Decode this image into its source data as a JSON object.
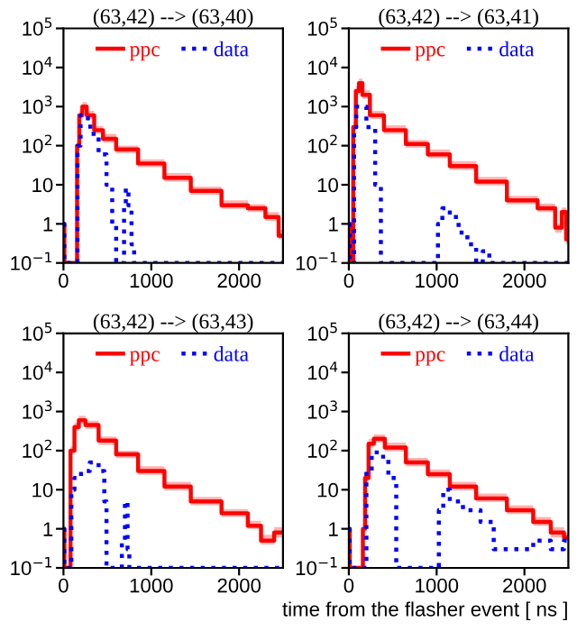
{
  "chart_data": [
    {
      "type": "step",
      "title": "(63,42) --> (63,40)",
      "xlim": [
        0,
        2500
      ],
      "ylim": [
        0.1,
        100000
      ],
      "log": true,
      "xticks": [
        0,
        1000,
        2000
      ],
      "yticks": [
        {
          "value": 0.1,
          "label": "10$^{−1}$"
        },
        1,
        10,
        {
          "value": 100,
          "label": "10$^{2}$"
        },
        {
          "value": 1000,
          "label": "10$^{3}$"
        },
        {
          "value": 10000,
          "label": "10$^{4}$"
        },
        {
          "value": 100000,
          "label": "10$^{5}$"
        }
      ],
      "legend": "top",
      "grid": false,
      "series": [
        {
          "name": "ppc",
          "color": "#ff0000",
          "line_style": "solid",
          "x": [
            0,
            20,
            150,
            160,
            200,
            230,
            300,
            400,
            500,
            700,
            1000,
            1300,
            1600,
            2000,
            2200,
            2400,
            2500
          ],
          "values": [
            1,
            0.1,
            0.1,
            100,
            600,
            1000,
            600,
            250,
            150,
            80,
            35,
            15,
            7,
            3,
            2.5,
            1.5,
            0.5
          ],
          "lower": [
            1,
            0.1,
            0.1,
            80,
            480,
            800,
            480,
            200,
            120,
            64,
            28,
            12,
            5.6,
            2.4,
            2,
            1.2,
            0.4
          ],
          "upper": [
            1,
            0.1,
            0.1,
            130,
            780,
            1300,
            780,
            320,
            200,
            100,
            45,
            20,
            9,
            4,
            3.2,
            2,
            0.7
          ]
        },
        {
          "name": "data",
          "color": "#0000ff",
          "line_style": "dotted",
          "x": [
            0,
            20,
            150,
            170,
            220,
            260,
            350,
            450,
            530,
            580,
            620,
            680,
            700,
            720,
            760,
            790,
            820,
            2500
          ],
          "values": [
            1,
            0.1,
            0.1,
            100,
            600,
            500,
            200,
            60,
            10,
            1,
            0.1,
            0.1,
            3,
            8,
            3,
            0.3,
            0.1,
            0.1
          ]
        }
      ]
    },
    {
      "type": "step",
      "title": "(63,42) --> (63,41)",
      "xlim": [
        0,
        2500
      ],
      "ylim": [
        0.1,
        100000
      ],
      "log": true,
      "xticks": [
        0,
        1000,
        2000
      ],
      "yticks": [
        {
          "value": 0.1,
          "label": "10$^{−1}$"
        },
        1,
        10,
        {
          "value": 100,
          "label": "10$^{2}$"
        },
        {
          "value": 1000,
          "label": "10$^{3}$"
        },
        {
          "value": 10000,
          "label": "10$^{4}$"
        },
        {
          "value": 100000,
          "label": "10$^{5}$"
        }
      ],
      "legend": "top",
      "grid": false,
      "series": [
        {
          "name": "ppc",
          "color": "#ff0000",
          "line_style": "solid",
          "x": [
            0,
            20,
            40,
            60,
            100,
            130,
            180,
            300,
            500,
            800,
            1000,
            1300,
            1600,
            2000,
            2300,
            2400,
            2450,
            2500
          ],
          "values": [
            1,
            0.1,
            0.1,
            300,
            2500,
            4000,
            2000,
            600,
            250,
            110,
            60,
            30,
            12,
            4,
            2.5,
            0.8,
            2,
            0.4
          ],
          "lower": [
            1,
            0.1,
            0.1,
            240,
            2000,
            3200,
            1600,
            480,
            200,
            88,
            48,
            24,
            9.6,
            3.2,
            2,
            0.6,
            1.6,
            0.3
          ],
          "upper": [
            1,
            0.1,
            0.1,
            400,
            3300,
            5200,
            2600,
            780,
            330,
            140,
            80,
            40,
            16,
            5.2,
            3.3,
            1,
            2.6,
            0.5
          ]
        },
        {
          "name": "data",
          "color": "#0000ff",
          "line_style": "dotted",
          "x": [
            0,
            20,
            50,
            70,
            100,
            150,
            250,
            350,
            380,
            1000,
            1030,
            1100,
            1200,
            1300,
            1400,
            1500,
            1550,
            1650,
            2500
          ],
          "values": [
            1,
            0.1,
            0.1,
            300,
            1000,
            1000,
            300,
            10,
            0.1,
            0.1,
            1,
            2.5,
            1.5,
            0.6,
            0.3,
            0.1,
            0.2,
            0.1,
            0.1
          ]
        }
      ]
    },
    {
      "type": "step",
      "title": "(63,42) --> (63,43)",
      "xlim": [
        0,
        2500
      ],
      "ylim": [
        0.1,
        100000
      ],
      "log": true,
      "xticks": [
        0,
        1000,
        2000
      ],
      "yticks": [
        {
          "value": 0.1,
          "label": "10$^{−1}$"
        },
        1,
        10,
        {
          "value": 100,
          "label": "10$^{2}$"
        },
        {
          "value": 1000,
          "label": "10$^{3}$"
        },
        {
          "value": 10000,
          "label": "10$^{4}$"
        },
        {
          "value": 100000,
          "label": "10$^{5}$"
        }
      ],
      "legend": "top",
      "grid": false,
      "series": [
        {
          "name": "ppc",
          "color": "#ff0000",
          "line_style": "solid",
          "x": [
            0,
            20,
            60,
            100,
            150,
            200,
            300,
            500,
            700,
            1000,
            1300,
            1600,
            2000,
            2200,
            2300,
            2500
          ],
          "values": [
            1,
            0.1,
            0.1,
            100,
            400,
            600,
            450,
            180,
            80,
            30,
            12,
            5,
            2.5,
            1.2,
            0.5,
            0.8
          ],
          "lower": [
            1,
            0.1,
            0.1,
            80,
            320,
            480,
            360,
            140,
            64,
            24,
            9.6,
            4,
            2,
            1,
            0.4,
            0.6
          ],
          "upper": [
            1,
            0.1,
            0.1,
            130,
            520,
            780,
            580,
            230,
            100,
            40,
            16,
            6.5,
            3.2,
            1.6,
            0.7,
            1.1
          ]
        },
        {
          "name": "data",
          "color": "#0000ff",
          "line_style": "dotted",
          "x": [
            0,
            20,
            80,
            100,
            150,
            250,
            350,
            450,
            480,
            500,
            650,
            680,
            720,
            740,
            760,
            2500
          ],
          "values": [
            1,
            0.1,
            0.1,
            10,
            20,
            30,
            50,
            30,
            5,
            0.1,
            0.1,
            0.5,
            5,
            0.3,
            0.1,
            0.1
          ]
        }
      ]
    },
    {
      "type": "step",
      "title": "(63,42) --> (63,44)",
      "xlabel": "time from the flasher event [ ns ]",
      "xlim": [
        0,
        2500
      ],
      "ylim": [
        0.1,
        100000
      ],
      "log": true,
      "xticks": [
        0,
        1000,
        2000
      ],
      "yticks": [
        {
          "value": 0.1,
          "label": "10$^{−1}$"
        },
        1,
        10,
        {
          "value": 100,
          "label": "10$^{2}$"
        },
        {
          "value": 1000,
          "label": "10$^{3}$"
        },
        {
          "value": 10000,
          "label": "10$^{4}$"
        },
        {
          "value": 100000,
          "label": "10$^{5}$"
        }
      ],
      "legend": "top",
      "grid": false,
      "series": [
        {
          "name": "ppc",
          "color": "#ff0000",
          "line_style": "solid",
          "x": [
            0,
            20,
            150,
            170,
            200,
            250,
            320,
            500,
            800,
            1000,
            1300,
            1600,
            2000,
            2200,
            2400,
            2500
          ],
          "values": [
            1,
            0.1,
            0.1,
            1,
            20,
            150,
            200,
            120,
            50,
            25,
            12,
            6,
            3,
            1.5,
            0.8,
            0.6
          ],
          "lower": [
            1,
            0.1,
            0.1,
            0.8,
            16,
            120,
            160,
            96,
            40,
            20,
            9.6,
            4.8,
            2.4,
            1.2,
            0.6,
            0.5
          ],
          "upper": [
            1,
            0.1,
            0.1,
            1.3,
            26,
            200,
            260,
            160,
            65,
            33,
            16,
            8,
            4,
            2,
            1.1,
            0.8
          ]
        },
        {
          "name": "data",
          "color": "#0000ff",
          "line_style": "dotted",
          "x": [
            0,
            20,
            180,
            220,
            300,
            400,
            500,
            580,
            1000,
            1050,
            1100,
            1200,
            1400,
            1600,
            1700,
            2000,
            2200,
            2400,
            2500
          ],
          "values": [
            1,
            0.1,
            0.1,
            30,
            90,
            70,
            20,
            0.1,
            0.1,
            3,
            10,
            5,
            3,
            1.5,
            0.3,
            0.3,
            0.5,
            0.3,
            0.5
          ]
        }
      ]
    }
  ]
}
